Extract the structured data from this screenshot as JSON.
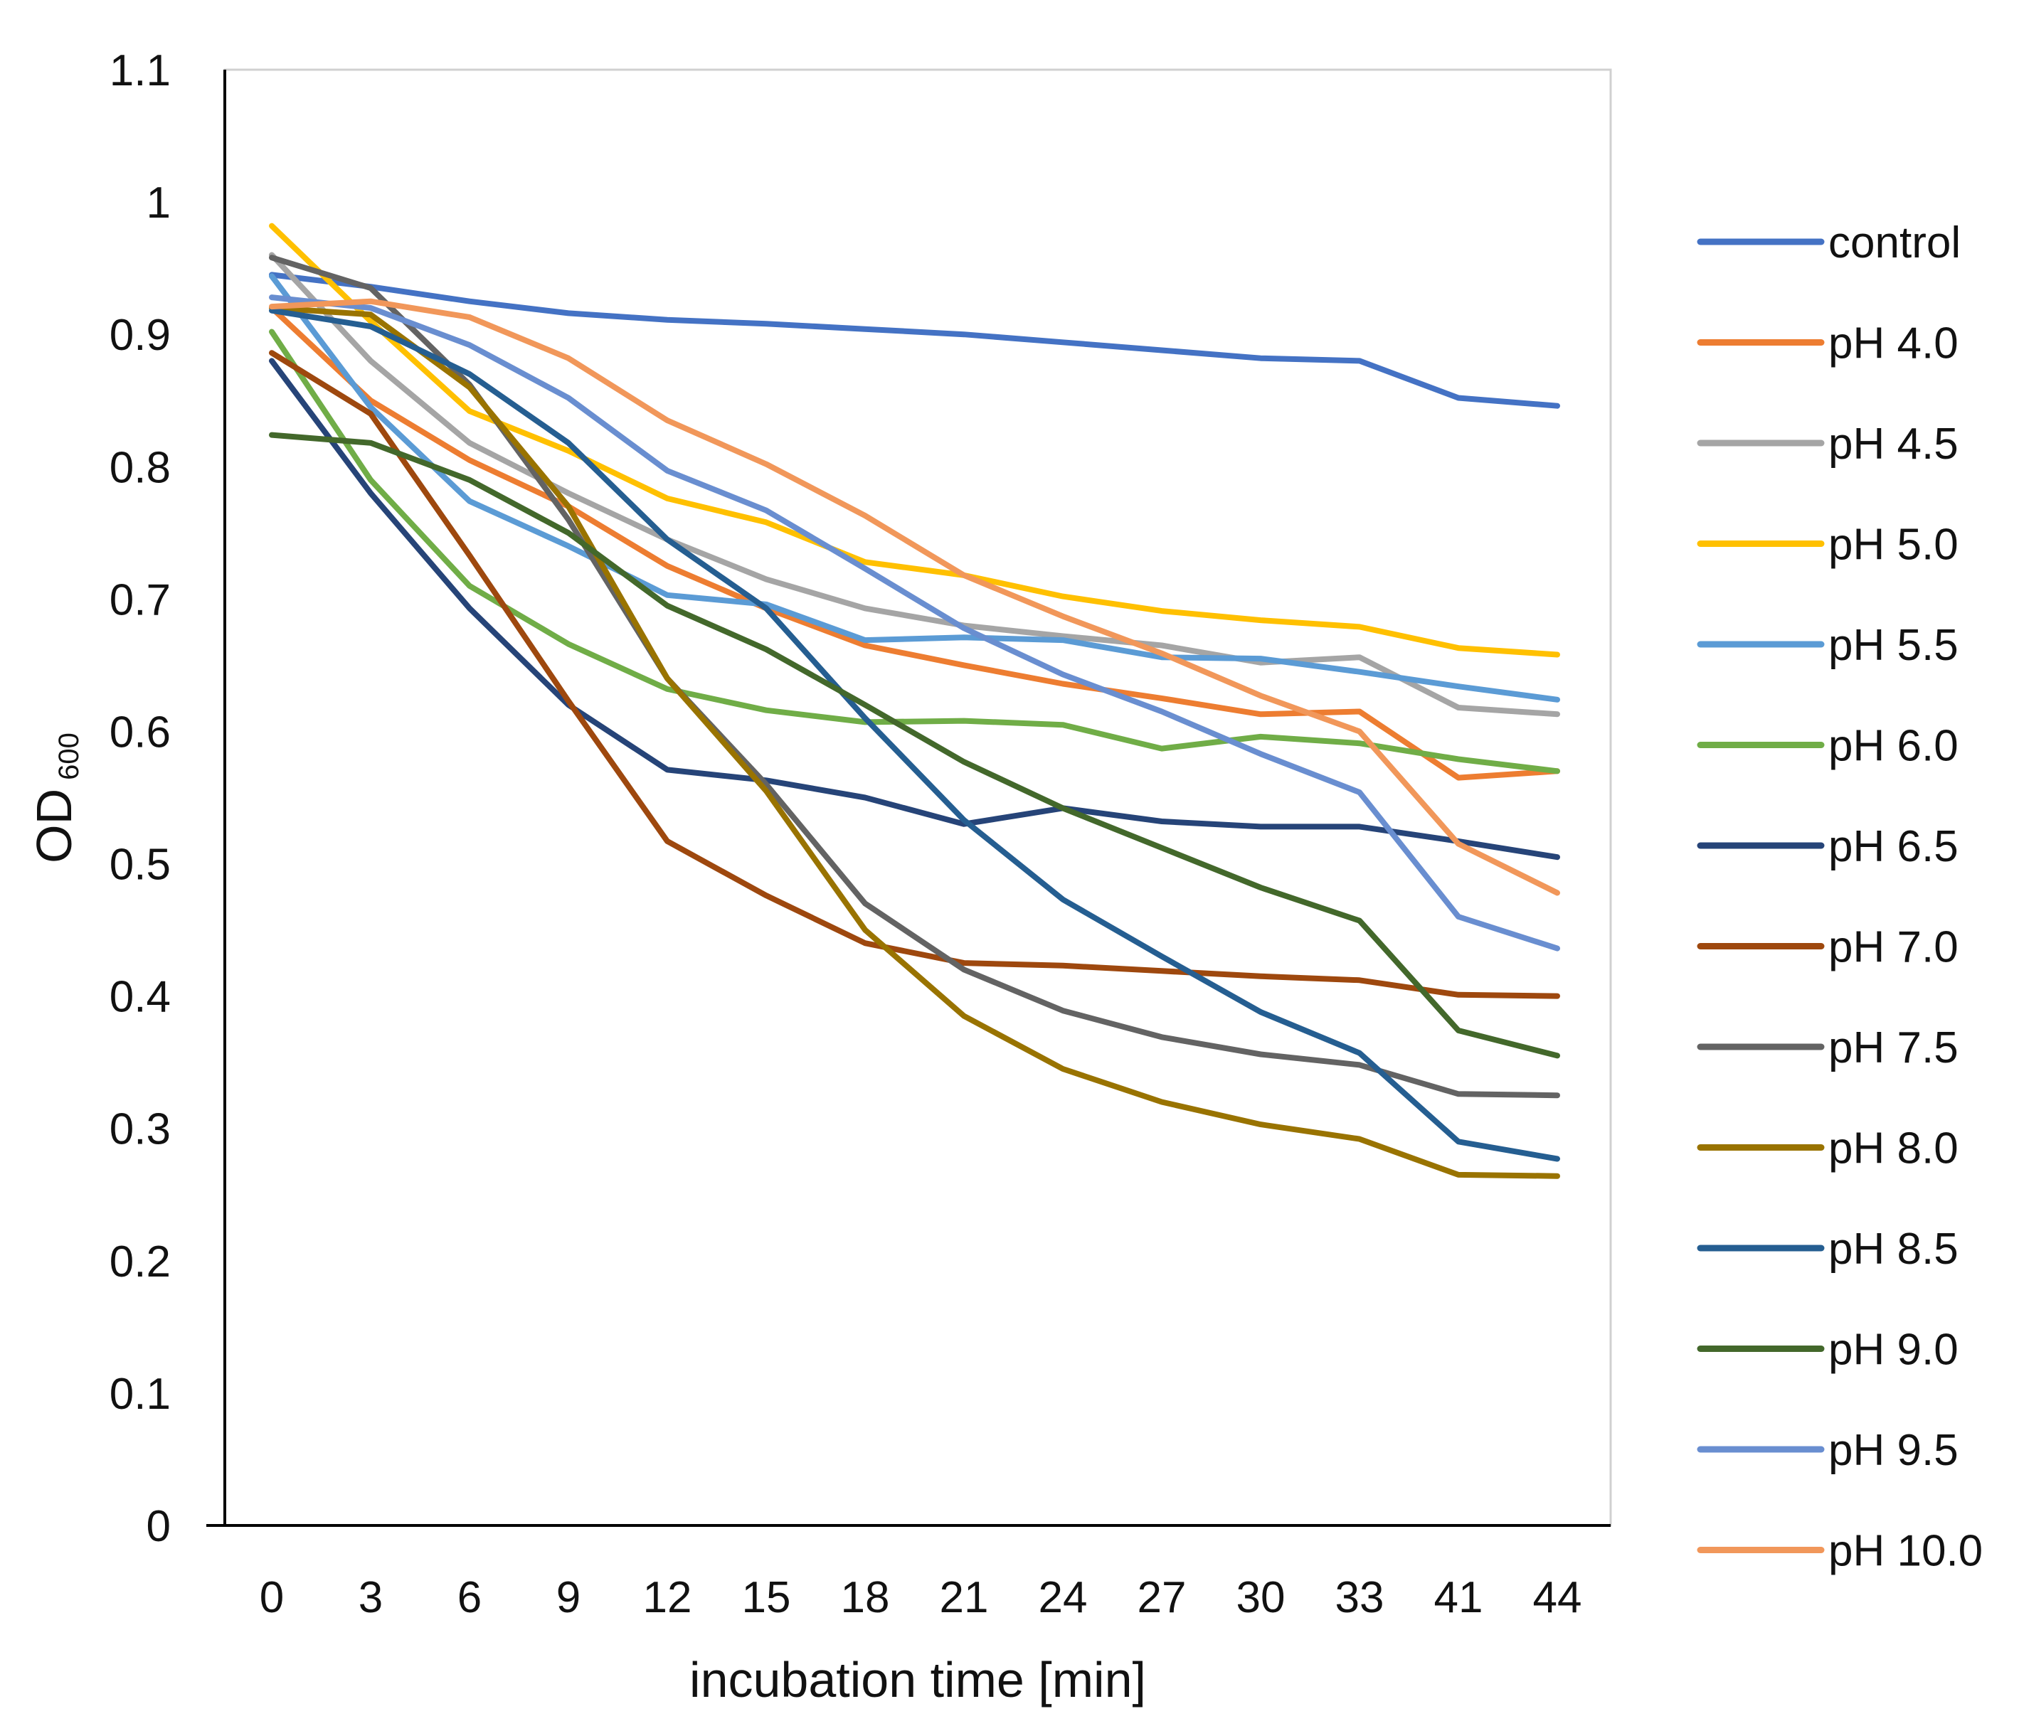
{
  "chart_data": {
    "type": "line",
    "title": "",
    "xlabel": "incubation time [min]",
    "ylabel": "OD",
    "ylabel_subscript": "600",
    "categories": [
      "0",
      "3",
      "6",
      "9",
      "12",
      "15",
      "18",
      "21",
      "24",
      "27",
      "30",
      "33",
      "41",
      "44"
    ],
    "ylim": [
      0,
      1.1
    ],
    "yticks": [
      "0",
      "0.1",
      "0.2",
      "0.3",
      "0.4",
      "0.5",
      "0.6",
      "0.7",
      "0.8",
      "0.9",
      "1",
      "1.1"
    ],
    "grid": false,
    "legend_position": "right",
    "series": [
      {
        "name": "control",
        "color": "#4472C4",
        "values": [
          0.945,
          0.936,
          0.925,
          0.916,
          0.911,
          0.908,
          0.904,
          0.9,
          0.894,
          0.888,
          0.882,
          0.88,
          0.852,
          0.846
        ]
      },
      {
        "name": "pH 4.0",
        "color": "#ED7D31",
        "values": [
          0.92,
          0.85,
          0.805,
          0.77,
          0.725,
          0.693,
          0.665,
          0.65,
          0.636,
          0.625,
          0.613,
          0.615,
          0.565,
          0.57
        ]
      },
      {
        "name": "pH 4.5",
        "color": "#A5A5A5",
        "values": [
          0.96,
          0.88,
          0.818,
          0.78,
          0.745,
          0.715,
          0.693,
          0.68,
          0.672,
          0.665,
          0.652,
          0.656,
          0.618,
          0.613
        ]
      },
      {
        "name": "pH 5.0",
        "color": "#FFC000",
        "values": [
          0.982,
          0.91,
          0.842,
          0.812,
          0.776,
          0.758,
          0.728,
          0.718,
          0.702,
          0.691,
          0.684,
          0.679,
          0.663,
          0.658
        ]
      },
      {
        "name": "pH 5.5",
        "color": "#5B9BD5",
        "values": [
          0.944,
          0.845,
          0.774,
          0.74,
          0.703,
          0.696,
          0.669,
          0.671,
          0.669,
          0.656,
          0.655,
          0.645,
          0.634,
          0.624
        ]
      },
      {
        "name": "pH 6.0",
        "color": "#70AD47",
        "values": [
          0.902,
          0.79,
          0.71,
          0.666,
          0.632,
          0.616,
          0.607,
          0.608,
          0.605,
          0.587,
          0.596,
          0.591,
          0.579,
          0.57
        ]
      },
      {
        "name": "pH 6.5",
        "color": "#264478",
        "values": [
          0.88,
          0.78,
          0.693,
          0.62,
          0.571,
          0.563,
          0.55,
          0.53,
          0.542,
          0.532,
          0.528,
          0.528,
          0.517,
          0.505
        ]
      },
      {
        "name": "pH 7.0",
        "color": "#9E480E",
        "values": [
          0.886,
          0.84,
          0.733,
          0.623,
          0.517,
          0.476,
          0.44,
          0.425,
          0.423,
          0.419,
          0.415,
          0.412,
          0.401,
          0.4
        ]
      },
      {
        "name": "pH 7.5",
        "color": "#636363",
        "values": [
          0.958,
          0.935,
          0.862,
          0.76,
          0.64,
          0.56,
          0.47,
          0.42,
          0.389,
          0.369,
          0.356,
          0.348,
          0.326,
          0.325
        ]
      },
      {
        "name": "pH 8.0",
        "color": "#997300",
        "values": [
          0.92,
          0.915,
          0.86,
          0.77,
          0.64,
          0.555,
          0.45,
          0.385,
          0.345,
          0.32,
          0.303,
          0.292,
          0.265,
          0.264
        ]
      },
      {
        "name": "pH 8.5",
        "color": "#255E91",
        "values": [
          0.918,
          0.906,
          0.87,
          0.818,
          0.745,
          0.693,
          0.61,
          0.533,
          0.473,
          0.43,
          0.388,
          0.357,
          0.29,
          0.277
        ]
      },
      {
        "name": "pH 9.0",
        "color": "#43682B",
        "values": [
          0.824,
          0.818,
          0.79,
          0.75,
          0.695,
          0.662,
          0.62,
          0.577,
          0.542,
          0.512,
          0.482,
          0.457,
          0.374,
          0.355
        ]
      },
      {
        "name": "pH 9.5",
        "color": "#698ED0",
        "values": [
          0.928,
          0.92,
          0.892,
          0.852,
          0.797,
          0.767,
          0.723,
          0.678,
          0.643,
          0.615,
          0.583,
          0.554,
          0.46,
          0.436
        ]
      },
      {
        "name": "pH 10.0",
        "color": "#F1975A",
        "values": [
          0.921,
          0.925,
          0.913,
          0.882,
          0.835,
          0.802,
          0.763,
          0.718,
          0.687,
          0.659,
          0.627,
          0.6,
          0.515,
          0.478
        ]
      }
    ]
  }
}
